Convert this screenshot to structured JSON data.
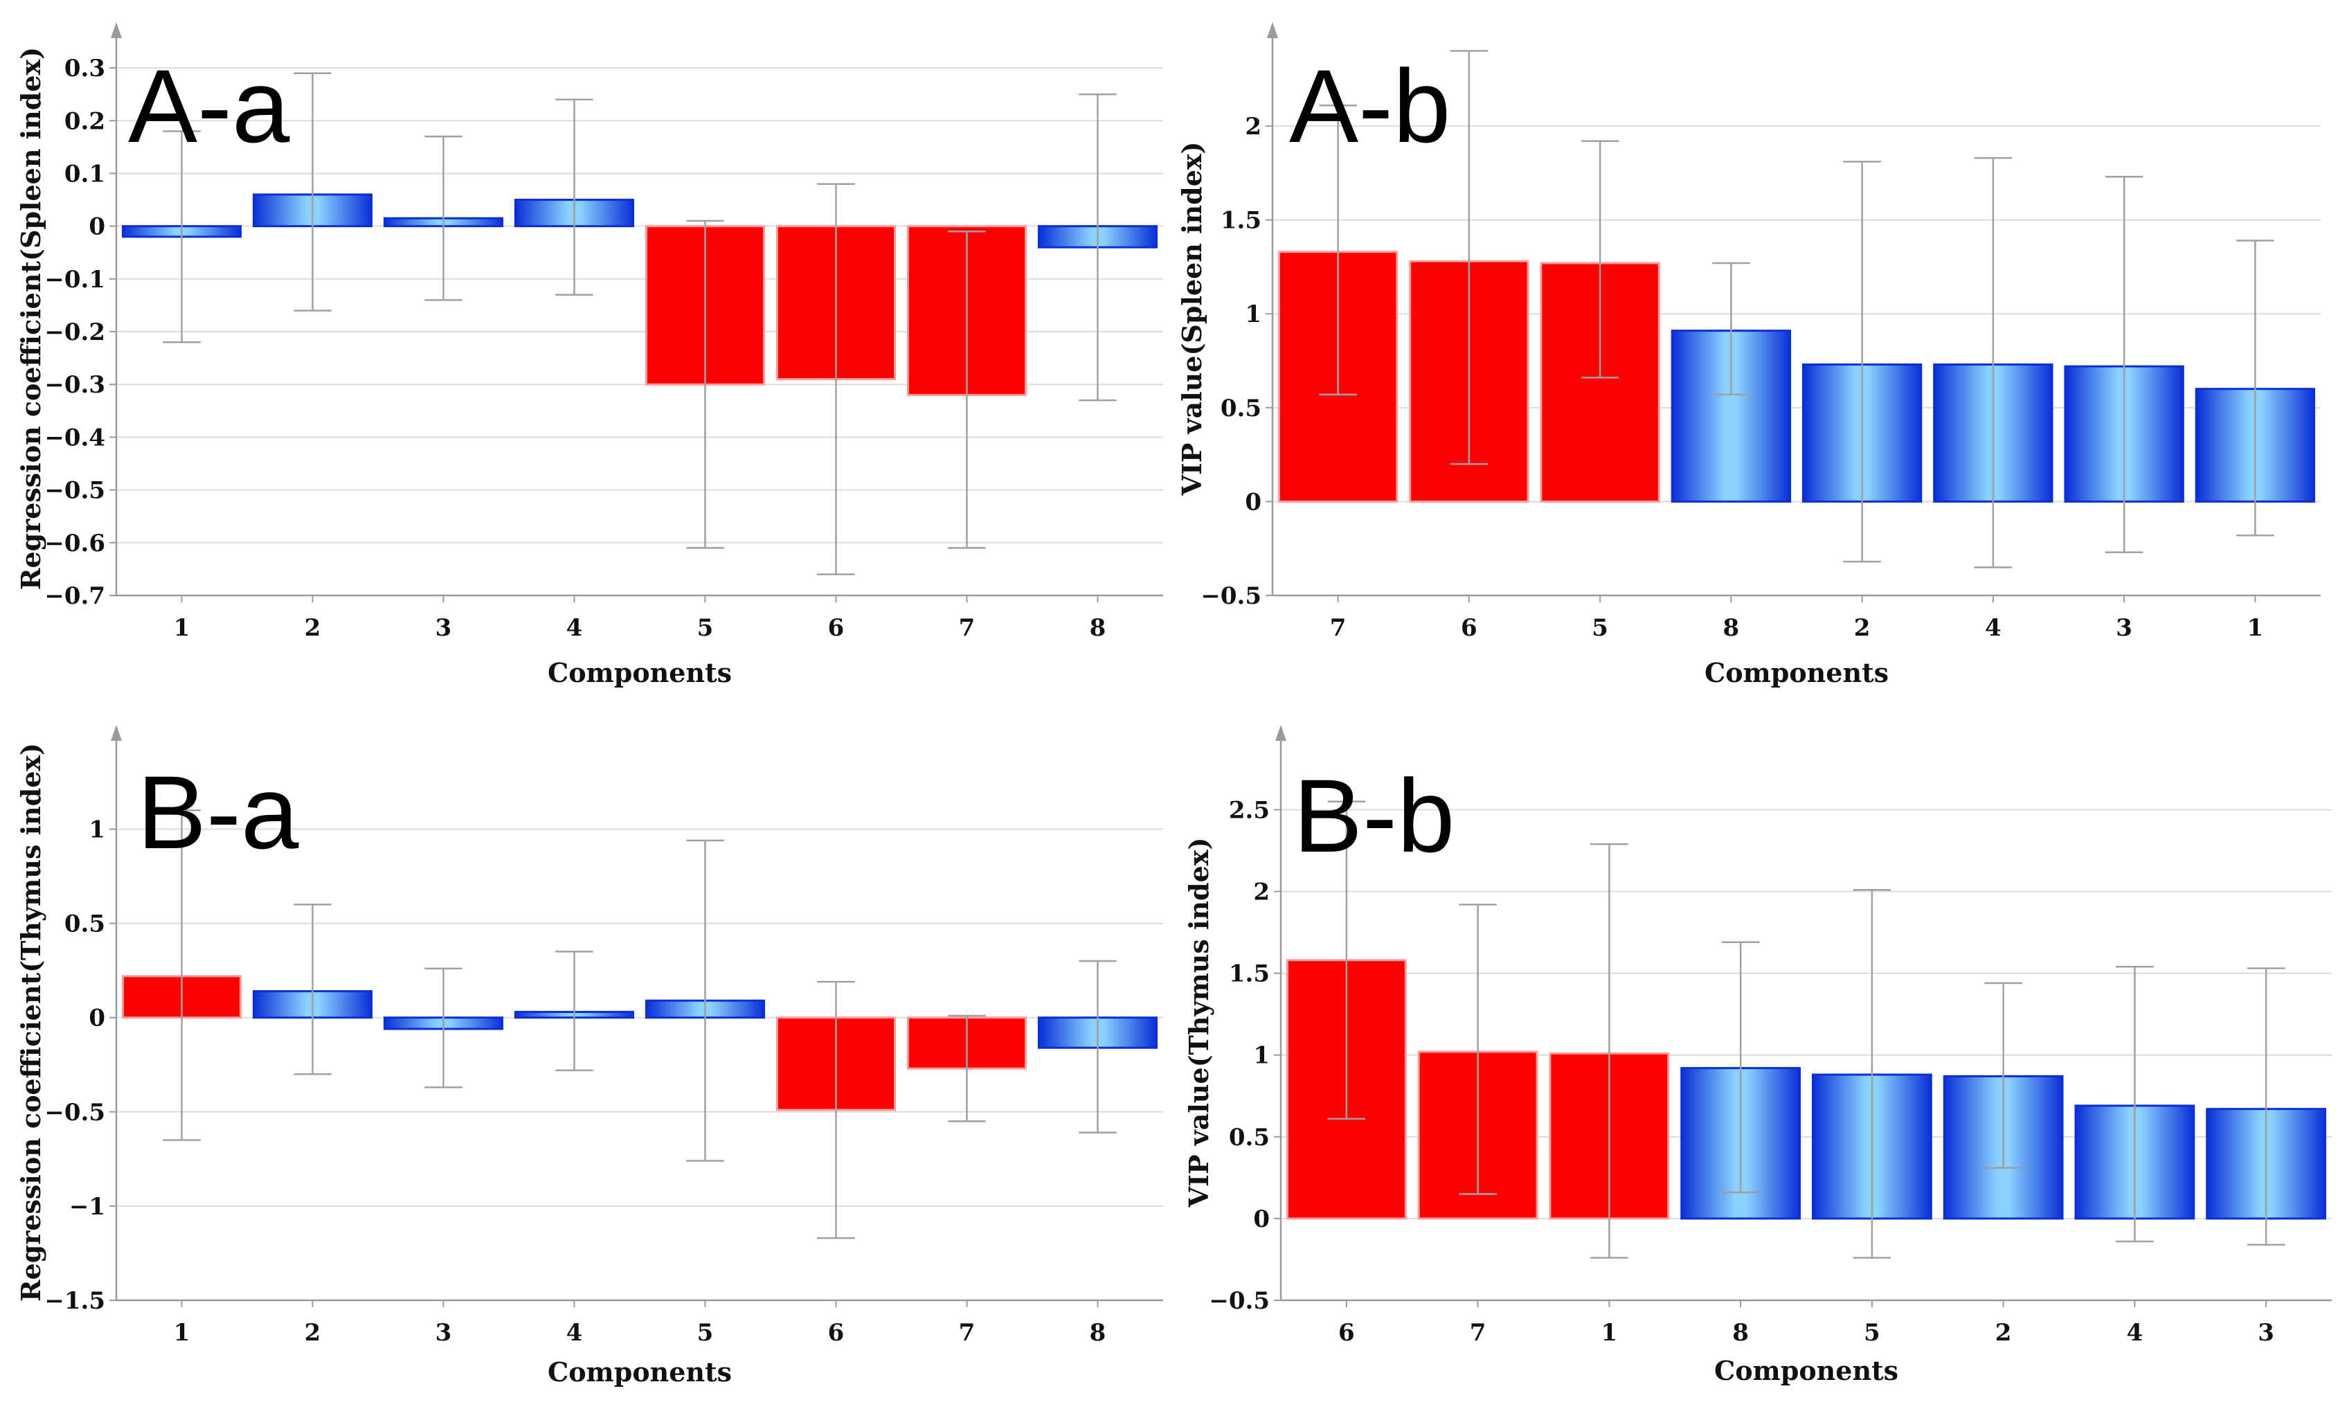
{
  "colors": {
    "highlight_bar": "#ff0000",
    "normal_bar_edge": "#0a2fd6",
    "normal_bar_mid": "#8ad2ff",
    "grid": "#dddddd",
    "axis": "#9a9a9a",
    "errorbar": "#a0a0a0"
  },
  "chart_data": [
    {
      "id": "A-a",
      "type": "bar",
      "title": "A-a",
      "xlabel": "Components",
      "ylabel": "Regression coefficient(Spleen index)",
      "categories": [
        "1",
        "2",
        "3",
        "4",
        "5",
        "6",
        "7",
        "8"
      ],
      "values": [
        -0.02,
        0.06,
        0.015,
        0.05,
        -0.3,
        -0.29,
        -0.32,
        -0.04
      ],
      "error_low": [
        -0.22,
        -0.16,
        -0.14,
        -0.13,
        -0.61,
        -0.66,
        -0.61,
        -0.33
      ],
      "error_high": [
        0.18,
        0.29,
        0.17,
        0.24,
        0.01,
        0.08,
        -0.01,
        0.25
      ],
      "highlight": [
        false,
        false,
        false,
        false,
        true,
        true,
        true,
        false
      ],
      "ylim": [
        -0.7,
        0.35
      ],
      "yticks": [
        -0.7,
        -0.6,
        -0.5,
        -0.4,
        -0.3,
        -0.2,
        -0.1,
        0,
        0.1,
        0.2,
        0.3
      ],
      "ytick_labels": [
        "−0.7",
        "−0.6",
        "−0.5",
        "−0.4",
        "−0.3",
        "−0.2",
        "−0.1",
        "0",
        "0.1",
        "0.2",
        "0.3"
      ],
      "grid": true,
      "legend": "none"
    },
    {
      "id": "A-b",
      "type": "bar",
      "title": "A-b",
      "xlabel": "Components",
      "ylabel": "VIP value(Spleen index)",
      "categories": [
        "7",
        "6",
        "5",
        "8",
        "2",
        "4",
        "3",
        "1"
      ],
      "values": [
        1.33,
        1.28,
        1.27,
        0.91,
        0.73,
        0.73,
        0.72,
        0.6
      ],
      "error_low": [
        0.57,
        0.2,
        0.66,
        0.57,
        -0.32,
        -0.35,
        -0.27,
        -0.18
      ],
      "error_high": [
        2.11,
        2.4,
        1.92,
        1.27,
        1.81,
        1.83,
        1.73,
        1.39
      ],
      "highlight": [
        true,
        true,
        true,
        false,
        false,
        false,
        false,
        false
      ],
      "ylim": [
        -0.5,
        2.45
      ],
      "yticks": [
        -0.5,
        0,
        0.5,
        1,
        1.5,
        2
      ],
      "ytick_labels": [
        "−0.5",
        "0",
        "0.5",
        "1",
        "1.5",
        "2"
      ],
      "grid": true,
      "legend": "none"
    },
    {
      "id": "B-a",
      "type": "bar",
      "title": "B-a",
      "xlabel": "Components",
      "ylabel": "Regression coefficient(Thymus index)",
      "categories": [
        "1",
        "2",
        "3",
        "4",
        "5",
        "6",
        "7",
        "8"
      ],
      "values": [
        0.22,
        0.14,
        -0.06,
        0.03,
        0.09,
        -0.49,
        -0.27,
        -0.16
      ],
      "error_low": [
        -0.65,
        -0.3,
        -0.37,
        -0.28,
        -0.76,
        -1.17,
        -0.55,
        -0.61
      ],
      "error_high": [
        1.1,
        0.6,
        0.26,
        0.35,
        0.94,
        0.19,
        0.01,
        0.3
      ],
      "highlight": [
        true,
        false,
        false,
        false,
        false,
        true,
        true,
        false
      ],
      "ylim": [
        -1.5,
        1.45
      ],
      "yticks": [
        -1.5,
        -1,
        -0.5,
        0,
        0.5,
        1
      ],
      "ytick_labels": [
        "−1.5",
        "−1",
        "−0.5",
        "0",
        "0.5",
        "1"
      ],
      "grid": true,
      "legend": "none"
    },
    {
      "id": "B-b",
      "type": "bar",
      "title": "B-b",
      "xlabel": "Components",
      "ylabel": "VIP value(Thymus index)",
      "categories": [
        "6",
        "7",
        "1",
        "8",
        "5",
        "2",
        "4",
        "3"
      ],
      "values": [
        1.58,
        1.02,
        1.01,
        0.92,
        0.88,
        0.87,
        0.69,
        0.67
      ],
      "error_low": [
        0.61,
        0.15,
        -0.24,
        0.16,
        -0.24,
        0.31,
        -0.14,
        -0.16
      ],
      "error_high": [
        2.55,
        1.92,
        2.29,
        1.69,
        2.01,
        1.44,
        1.54,
        1.53
      ],
      "highlight": [
        true,
        true,
        true,
        false,
        false,
        false,
        false,
        false
      ],
      "ylim": [
        -0.5,
        2.9
      ],
      "yticks": [
        -0.5,
        0,
        0.5,
        1,
        1.5,
        2,
        2.5
      ],
      "ytick_labels": [
        "−0.5",
        "0",
        "0.5",
        "1",
        "1.5",
        "2",
        "2.5"
      ],
      "grid": true,
      "legend": "none"
    }
  ]
}
